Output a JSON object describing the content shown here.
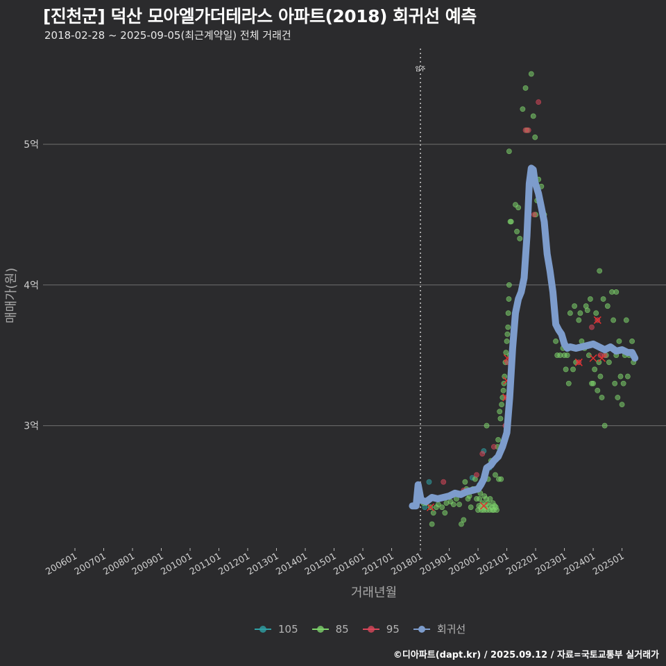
{
  "header": {
    "title": "[진천군] 덕산 모아엘가더테라스 아파트(2018) 회귀선 예측",
    "subtitle": "2018-02-28 ~ 2025-09-05(최근계약일) 전체 거래건"
  },
  "credit": "©디아파트(dapt.kr) / 2025.09.12 / 자료=국토교통부 실거래가",
  "colors": {
    "background": "#2b2b2d",
    "grid": "#707070",
    "s105": "#2fa0a4",
    "s85": "#7ed36b",
    "s95": "#d9475a",
    "regression": "#7d9ccc"
  },
  "chart_data": {
    "type": "scatter",
    "title": "[진천군] 덕산 모아엘가더테라스 아파트(2018) 회귀선 예측",
    "xlabel": "거래년월",
    "ylabel": "매매가(원)",
    "xlim": [
      2006.0,
      2025.95
    ],
    "ylim": [
      2.13,
      5.7
    ],
    "x_ticks": [
      {
        "label": "200601",
        "value": 2006.0
      },
      {
        "label": "200701",
        "value": 2007.0
      },
      {
        "label": "200801",
        "value": 2008.0
      },
      {
        "label": "200901",
        "value": 2009.0
      },
      {
        "label": "201001",
        "value": 2010.0
      },
      {
        "label": "201101",
        "value": 2011.0
      },
      {
        "label": "201201",
        "value": 2012.0
      },
      {
        "label": "201301",
        "value": 2013.0
      },
      {
        "label": "201401",
        "value": 2014.0
      },
      {
        "label": "201501",
        "value": 2015.0
      },
      {
        "label": "201601",
        "value": 2016.0
      },
      {
        "label": "201701",
        "value": 2017.0
      },
      {
        "label": "201801",
        "value": 2018.0
      },
      {
        "label": "201901",
        "value": 2019.0
      },
      {
        "label": "202001",
        "value": 2020.0
      },
      {
        "label": "202101",
        "value": 2021.0
      },
      {
        "label": "202201",
        "value": 2022.0
      },
      {
        "label": "202301",
        "value": 2023.0
      },
      {
        "label": "202401",
        "value": 2024.0
      },
      {
        "label": "202501",
        "value": 2025.0
      }
    ],
    "y_ticks": [
      {
        "label": "3억",
        "value": 3
      },
      {
        "label": "4억",
        "value": 4
      },
      {
        "label": "5억",
        "value": 5
      }
    ],
    "annotation": {
      "label": "입주",
      "x": 2018.0
    },
    "legend": [
      {
        "name": "105",
        "key": "s105"
      },
      {
        "name": "85",
        "key": "s85"
      },
      {
        "name": "95",
        "key": "s95"
      },
      {
        "name": "회귀선",
        "key": "regression"
      }
    ],
    "series": [
      {
        "name": "105",
        "key": "s105",
        "points": [
          [
            2018.15,
            2.42
          ],
          [
            2018.3,
            2.6
          ],
          [
            2019.8,
            2.63
          ],
          [
            2020.05,
            2.58
          ],
          [
            2020.2,
            2.82
          ],
          [
            2020.4,
            2.7
          ]
        ]
      },
      {
        "name": "85",
        "key": "s85",
        "points": [
          [
            2018.1,
            2.45
          ],
          [
            2018.2,
            2.45
          ],
          [
            2018.35,
            2.42
          ],
          [
            2018.45,
            2.38
          ],
          [
            2018.55,
            2.42
          ],
          [
            2018.62,
            2.44
          ],
          [
            2018.75,
            2.42
          ],
          [
            2018.85,
            2.38
          ],
          [
            2018.4,
            2.3
          ],
          [
            2018.9,
            2.45
          ],
          [
            2019.05,
            2.46
          ],
          [
            2019.15,
            2.44
          ],
          [
            2019.25,
            2.48
          ],
          [
            2019.35,
            2.44
          ],
          [
            2019.42,
            2.3
          ],
          [
            2019.5,
            2.33
          ],
          [
            2019.55,
            2.6
          ],
          [
            2019.6,
            2.55
          ],
          [
            2019.65,
            2.48
          ],
          [
            2019.7,
            2.5
          ],
          [
            2019.75,
            2.42
          ],
          [
            2019.82,
            2.55
          ],
          [
            2019.9,
            2.62
          ],
          [
            2019.95,
            2.48
          ],
          [
            2020.0,
            2.4
          ],
          [
            2020.03,
            2.43
          ],
          [
            2020.05,
            2.48
          ],
          [
            2020.08,
            2.52
          ],
          [
            2020.1,
            2.42
          ],
          [
            2020.12,
            2.4
          ],
          [
            2020.15,
            2.45
          ],
          [
            2020.18,
            2.43
          ],
          [
            2020.2,
            2.4
          ],
          [
            2020.22,
            2.5
          ],
          [
            2020.25,
            2.42
          ],
          [
            2020.28,
            2.48
          ],
          [
            2020.3,
            2.4
          ],
          [
            2020.33,
            2.45
          ],
          [
            2020.35,
            2.62
          ],
          [
            2020.38,
            2.43
          ],
          [
            2020.4,
            2.4
          ],
          [
            2020.42,
            2.48
          ],
          [
            2020.45,
            2.75
          ],
          [
            2020.48,
            2.42
          ],
          [
            2020.5,
            2.4
          ],
          [
            2020.52,
            2.45
          ],
          [
            2020.55,
            2.4
          ],
          [
            2020.58,
            2.43
          ],
          [
            2020.6,
            2.65
          ],
          [
            2020.62,
            2.42
          ],
          [
            2020.65,
            2.4
          ],
          [
            2020.68,
            2.85
          ],
          [
            2020.7,
            2.9
          ],
          [
            2020.72,
            2.62
          ],
          [
            2020.75,
            3.1
          ],
          [
            2020.78,
            3.05
          ],
          [
            2020.8,
            2.62
          ],
          [
            2020.82,
            3.15
          ],
          [
            2020.85,
            3.2
          ],
          [
            2020.88,
            3.25
          ],
          [
            2020.9,
            3.3
          ],
          [
            2020.92,
            3.35
          ],
          [
            2020.95,
            3.45
          ],
          [
            2020.97,
            3.52
          ],
          [
            2020.3,
            3.0
          ],
          [
            2021.0,
            3.6
          ],
          [
            2021.02,
            3.65
          ],
          [
            2021.04,
            3.7
          ],
          [
            2021.05,
            3.8
          ],
          [
            2021.07,
            3.9
          ],
          [
            2021.08,
            4.0
          ],
          [
            2021.1,
            3.5
          ],
          [
            2021.12,
            4.45
          ],
          [
            2021.15,
            4.45
          ],
          [
            2021.08,
            4.95
          ],
          [
            2021.3,
            4.57
          ],
          [
            2021.4,
            4.55
          ],
          [
            2021.35,
            4.38
          ],
          [
            2021.45,
            4.33
          ],
          [
            2021.55,
            5.25
          ],
          [
            2021.65,
            5.4
          ],
          [
            2021.7,
            5.1
          ],
          [
            2021.85,
            5.5
          ],
          [
            2021.92,
            5.2
          ],
          [
            2021.98,
            5.05
          ],
          [
            2022.0,
            4.5
          ],
          [
            2022.05,
            4.6
          ],
          [
            2022.1,
            4.75
          ],
          [
            2022.2,
            4.7
          ],
          [
            2022.3,
            4.5
          ],
          [
            2022.5,
            4.1
          ],
          [
            2022.7,
            3.6
          ],
          [
            2022.75,
            3.5
          ],
          [
            2022.85,
            3.5
          ],
          [
            2022.9,
            3.65
          ],
          [
            2022.95,
            3.55
          ],
          [
            2023.0,
            3.5
          ],
          [
            2023.05,
            3.4
          ],
          [
            2023.1,
            3.5
          ],
          [
            2023.15,
            3.3
          ],
          [
            2023.2,
            3.8
          ],
          [
            2023.3,
            3.4
          ],
          [
            2023.35,
            3.85
          ],
          [
            2023.4,
            3.45
          ],
          [
            2023.5,
            3.75
          ],
          [
            2023.55,
            3.8
          ],
          [
            2023.6,
            3.6
          ],
          [
            2023.7,
            3.55
          ],
          [
            2023.75,
            3.85
          ],
          [
            2023.8,
            3.82
          ],
          [
            2023.85,
            3.5
          ],
          [
            2023.9,
            3.9
          ],
          [
            2023.95,
            3.3
          ],
          [
            2024.0,
            3.3
          ],
          [
            2024.05,
            3.4
          ],
          [
            2024.1,
            3.8
          ],
          [
            2024.15,
            3.25
          ],
          [
            2024.2,
            3.45
          ],
          [
            2024.25,
            3.35
          ],
          [
            2024.3,
            3.2
          ],
          [
            2024.35,
            3.9
          ],
          [
            2024.4,
            3.0
          ],
          [
            2024.45,
            3.5
          ],
          [
            2024.5,
            3.85
          ],
          [
            2024.55,
            3.45
          ],
          [
            2024.65,
            3.95
          ],
          [
            2024.7,
            3.75
          ],
          [
            2024.75,
            3.3
          ],
          [
            2024.8,
            3.5
          ],
          [
            2024.85,
            3.2
          ],
          [
            2024.9,
            3.6
          ],
          [
            2024.95,
            3.35
          ],
          [
            2025.0,
            3.15
          ],
          [
            2025.05,
            3.3
          ],
          [
            2025.1,
            3.5
          ],
          [
            2025.15,
            3.75
          ],
          [
            2025.2,
            3.35
          ],
          [
            2025.25,
            3.5
          ],
          [
            2025.35,
            3.6
          ],
          [
            2025.4,
            3.45
          ],
          [
            2024.22,
            4.1
          ],
          [
            2024.8,
            3.95
          ]
        ]
      },
      {
        "name": "95",
        "key": "s95",
        "points": [
          [
            2018.8,
            2.6
          ],
          [
            2019.5,
            2.54
          ],
          [
            2019.95,
            2.65
          ],
          [
            2020.15,
            2.8
          ],
          [
            2020.55,
            2.85
          ],
          [
            2020.95,
            3.0
          ],
          [
            2020.98,
            3.2
          ],
          [
            2021.02,
            3.45
          ],
          [
            2021.65,
            5.1
          ],
          [
            2021.75,
            5.1
          ],
          [
            2022.1,
            5.3
          ],
          [
            2021.95,
            4.5
          ],
          [
            2023.5,
            3.45
          ],
          [
            2023.95,
            3.7
          ],
          [
            2024.15,
            3.75
          ],
          [
            2024.25,
            3.5
          ],
          [
            2024.4,
            3.5
          ]
        ]
      }
    ],
    "highlight_points": [
      [
        2018.35,
        2.42
      ],
      [
        2020.2,
        2.43
      ],
      [
        2020.98,
        3.2
      ],
      [
        2021.0,
        3.32
      ],
      [
        2021.02,
        3.48
      ],
      [
        2023.5,
        3.45
      ],
      [
        2024.0,
        3.48
      ],
      [
        2024.15,
        3.75
      ],
      [
        2024.3,
        3.48
      ]
    ],
    "regression": {
      "name": "회귀선",
      "points": [
        [
          2017.72,
          2.43
        ],
        [
          2017.85,
          2.43
        ],
        [
          2017.92,
          2.58
        ],
        [
          2018.02,
          2.47
        ],
        [
          2018.2,
          2.46
        ],
        [
          2018.4,
          2.49
        ],
        [
          2018.6,
          2.48
        ],
        [
          2018.8,
          2.49
        ],
        [
          2019.0,
          2.5
        ],
        [
          2019.2,
          2.52
        ],
        [
          2019.4,
          2.51
        ],
        [
          2019.6,
          2.53
        ],
        [
          2019.8,
          2.54
        ],
        [
          2020.0,
          2.55
        ],
        [
          2020.1,
          2.58
        ],
        [
          2020.2,
          2.62
        ],
        [
          2020.3,
          2.7
        ],
        [
          2020.45,
          2.72
        ],
        [
          2020.55,
          2.75
        ],
        [
          2020.7,
          2.78
        ],
        [
          2020.85,
          2.85
        ],
        [
          2021.0,
          2.95
        ],
        [
          2021.1,
          3.2
        ],
        [
          2021.2,
          3.55
        ],
        [
          2021.3,
          3.8
        ],
        [
          2021.4,
          3.9
        ],
        [
          2021.5,
          3.95
        ],
        [
          2021.6,
          4.05
        ],
        [
          2021.7,
          4.35
        ],
        [
          2021.78,
          4.72
        ],
        [
          2021.85,
          4.83
        ],
        [
          2021.92,
          4.82
        ],
        [
          2021.98,
          4.73
        ],
        [
          2022.1,
          4.65
        ],
        [
          2022.2,
          4.55
        ],
        [
          2022.3,
          4.45
        ],
        [
          2022.4,
          4.22
        ],
        [
          2022.5,
          4.1
        ],
        [
          2022.6,
          3.95
        ],
        [
          2022.7,
          3.72
        ],
        [
          2022.8,
          3.68
        ],
        [
          2022.9,
          3.65
        ],
        [
          2023.0,
          3.58
        ],
        [
          2023.1,
          3.55
        ],
        [
          2023.2,
          3.56
        ],
        [
          2023.4,
          3.55
        ],
        [
          2023.6,
          3.56
        ],
        [
          2023.8,
          3.57
        ],
        [
          2024.0,
          3.58
        ],
        [
          2024.2,
          3.56
        ],
        [
          2024.4,
          3.54
        ],
        [
          2024.6,
          3.56
        ],
        [
          2024.8,
          3.53
        ],
        [
          2025.0,
          3.54
        ],
        [
          2025.2,
          3.52
        ],
        [
          2025.35,
          3.52
        ],
        [
          2025.45,
          3.48
        ]
      ]
    }
  }
}
